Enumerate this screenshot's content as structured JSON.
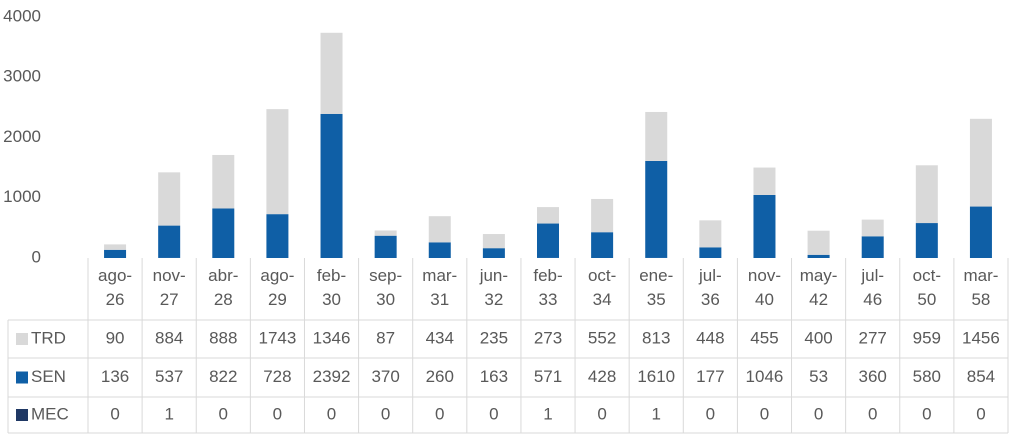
{
  "chart_data": {
    "type": "stacked_bar",
    "categories": [
      "ago-26",
      "nov-27",
      "abr-28",
      "ago-29",
      "feb-30",
      "sep-30",
      "mar-31",
      "jun-32",
      "feb-33",
      "oct-34",
      "ene-35",
      "jul-36",
      "nov-40",
      "may-42",
      "jul-46",
      "oct-50",
      "mar-58"
    ],
    "series": [
      {
        "name": "TRD",
        "color": "#d9d9d9",
        "values": [
          90,
          884,
          888,
          1743,
          1346,
          87,
          434,
          235,
          273,
          552,
          813,
          448,
          455,
          400,
          277,
          959,
          1456
        ]
      },
      {
        "name": "SEN",
        "color": "#0f5fa6",
        "values": [
          136,
          537,
          822,
          728,
          2392,
          370,
          260,
          163,
          571,
          428,
          1610,
          177,
          1046,
          53,
          360,
          580,
          854
        ]
      },
      {
        "name": "MEC",
        "color": "#1f3864",
        "values": [
          0,
          1,
          0,
          0,
          0,
          0,
          0,
          0,
          1,
          0,
          1,
          0,
          0,
          0,
          0,
          0,
          0
        ]
      }
    ],
    "ylim": [
      0,
      4000
    ],
    "yticks": [
      0,
      1000,
      2000,
      3000,
      4000
    ],
    "grid": false,
    "data_table": true
  }
}
